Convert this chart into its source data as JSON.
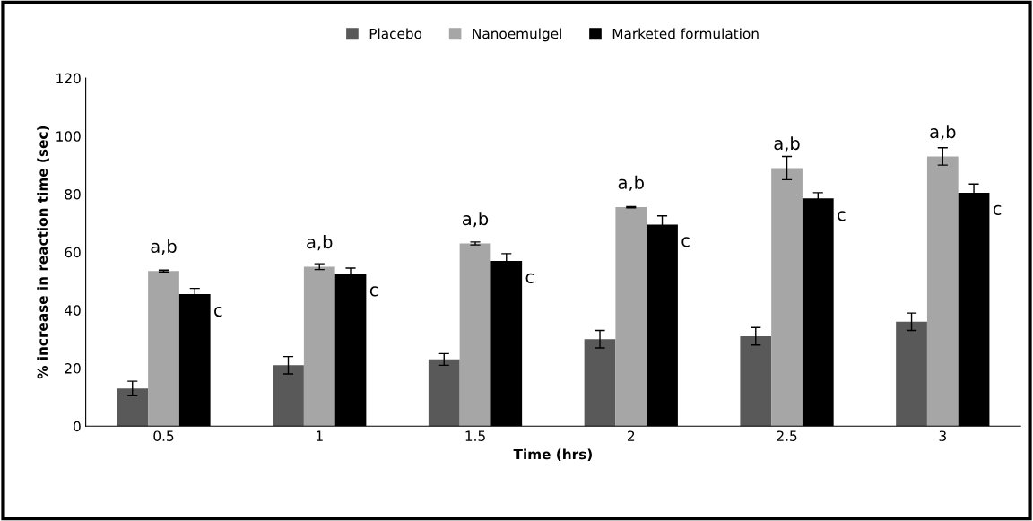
{
  "chart_data": {
    "type": "bar",
    "xlabel": "Time (hrs)",
    "ylabel": "% increase in reaction time (sec)",
    "categories": [
      "0.5",
      "1",
      "1.5",
      "2",
      "2.5",
      "3"
    ],
    "series": [
      {
        "name": "Placebo",
        "color": "#595959",
        "values": [
          13,
          21,
          23,
          30,
          31,
          36
        ],
        "errors": [
          2.5,
          3,
          2,
          3,
          3,
          3
        ]
      },
      {
        "name": "Nanoemulgel",
        "color": "#a6a6a6",
        "values": [
          53.5,
          55,
          63,
          75.5,
          89,
          93
        ],
        "errors": [
          0.3,
          1,
          0.5,
          0.2,
          4,
          3
        ]
      },
      {
        "name": "Marketed formulation",
        "color": "#000000",
        "values": [
          45.5,
          52.5,
          57,
          69.5,
          78.5,
          80.5
        ],
        "errors": [
          2,
          2,
          2.5,
          3,
          2,
          3
        ]
      }
    ],
    "ylim": [
      0,
      120
    ],
    "yticks": [
      0,
      20,
      40,
      60,
      80,
      100,
      120
    ],
    "grid": false,
    "legend": "top",
    "annotations": [
      "a,b",
      "a,b",
      "a,b",
      "a,b",
      "a,b",
      "a,b",
      "c",
      "c",
      "c",
      "c",
      "c",
      "c"
    ]
  }
}
